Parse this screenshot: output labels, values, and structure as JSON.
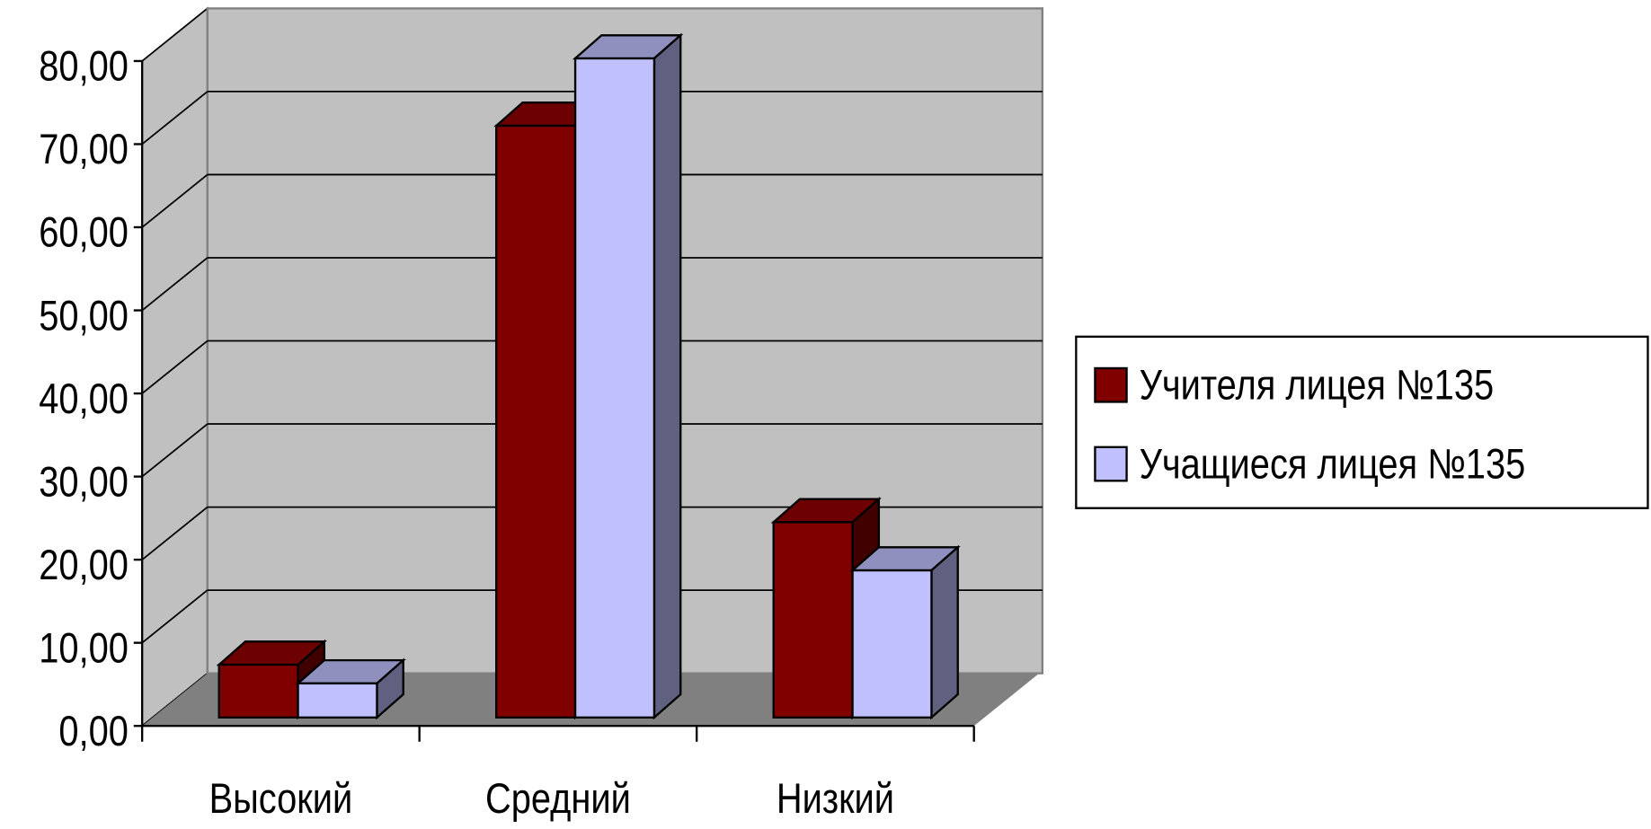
{
  "chart_data": {
    "type": "bar3d",
    "categories": [
      "Высокий",
      "Средний",
      "Низкий"
    ],
    "series": [
      {
        "name": "Учителя лицея №135",
        "color": "#800000",
        "values": [
          6.35,
          71.2,
          23.5
        ]
      },
      {
        "name": "Учащиеся лицея №135",
        "color": "#c0c0ff",
        "values": [
          4.1,
          79.3,
          17.7
        ]
      }
    ],
    "ylim": [
      0,
      80
    ],
    "yticks": [
      {
        "value": 0,
        "label": "0,00"
      },
      {
        "value": 10,
        "label": "10,00"
      },
      {
        "value": 20,
        "label": "20,00"
      },
      {
        "value": 30,
        "label": "30,00"
      },
      {
        "value": 40,
        "label": "40,00"
      },
      {
        "value": 50,
        "label": "50,00"
      },
      {
        "value": 60,
        "label": "60,00"
      },
      {
        "value": 70,
        "label": "70,00"
      },
      {
        "value": 80,
        "label": "80,00"
      }
    ],
    "grid": true,
    "legend": "right"
  }
}
